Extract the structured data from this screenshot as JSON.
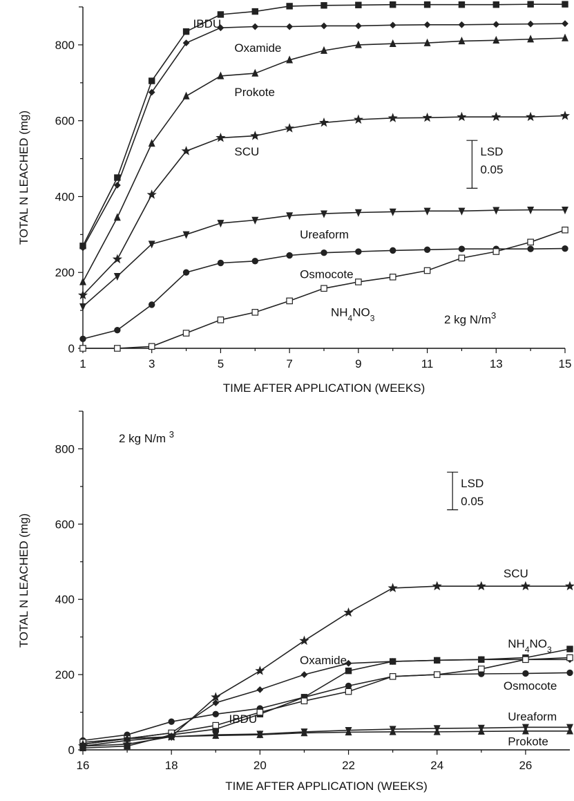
{
  "chart_data": [
    {
      "type": "line",
      "xlabel": "TIME AFTER APPLICATION (WEEKS)",
      "ylabel": "TOTAL N LEACHED (mg)",
      "xlim": [
        1,
        15
      ],
      "ylim": [
        0,
        900
      ],
      "xticks": [
        1,
        3,
        5,
        7,
        9,
        11,
        13,
        15
      ],
      "yticks": [
        0,
        200,
        400,
        600,
        800
      ],
      "annotation": {
        "line1": "2 kg N/m",
        "sup": "3"
      },
      "lsd": {
        "line1": "LSD",
        "line2": "0.05",
        "y_low": 422,
        "y_high": 548,
        "x": 12.3
      },
      "series": [
        {
          "name": "IBDU",
          "marker": "square",
          "label_x": 4.2,
          "label_y": 845,
          "x": [
            1,
            2,
            3,
            4,
            5,
            6,
            7,
            8,
            9,
            10,
            11,
            12,
            13,
            14,
            15
          ],
          "values": [
            270,
            450,
            705,
            835,
            880,
            888,
            902,
            904,
            905,
            906,
            906,
            906,
            906,
            907,
            907
          ]
        },
        {
          "name": "Oxamide",
          "marker": "diamond",
          "label_x": 5.4,
          "label_y": 782,
          "x": [
            1,
            2,
            3,
            4,
            5,
            6,
            7,
            8,
            9,
            10,
            11,
            12,
            13,
            14,
            15
          ],
          "values": [
            265,
            430,
            675,
            805,
            845,
            848,
            848,
            850,
            850,
            852,
            853,
            853,
            854,
            855,
            856
          ]
        },
        {
          "name": "Prokote",
          "marker": "triangle",
          "label_x": 5.4,
          "label_y": 665,
          "x": [
            1,
            2,
            3,
            4,
            5,
            6,
            7,
            8,
            9,
            10,
            11,
            12,
            13,
            14,
            15
          ],
          "values": [
            175,
            345,
            540,
            665,
            718,
            725,
            760,
            785,
            800,
            803,
            805,
            810,
            812,
            815,
            818
          ]
        },
        {
          "name": "SCU",
          "marker": "star",
          "label_x": 5.4,
          "label_y": 508,
          "x": [
            1,
            2,
            3,
            4,
            5,
            6,
            7,
            8,
            9,
            10,
            11,
            12,
            13,
            14,
            15
          ],
          "values": [
            140,
            235,
            405,
            520,
            555,
            560,
            580,
            595,
            603,
            607,
            608,
            610,
            610,
            610,
            613
          ]
        },
        {
          "name": "Ureaform",
          "marker": "tri-down",
          "label_x": 7.3,
          "label_y": 290,
          "x": [
            1,
            2,
            3,
            4,
            5,
            6,
            7,
            8,
            9,
            10,
            11,
            12,
            13,
            14,
            15
          ],
          "values": [
            110,
            190,
            275,
            300,
            330,
            338,
            350,
            355,
            358,
            360,
            362,
            362,
            364,
            365,
            365
          ]
        },
        {
          "name": "Osmocote",
          "marker": "circle",
          "label_x": 7.3,
          "label_y": 185,
          "x": [
            1,
            2,
            3,
            4,
            5,
            6,
            7,
            8,
            9,
            10,
            11,
            12,
            13,
            14,
            15
          ],
          "values": [
            25,
            48,
            115,
            200,
            225,
            230,
            245,
            252,
            255,
            258,
            260,
            262,
            262,
            262,
            263
          ]
        },
        {
          "name": "NH4NO3",
          "marker": "square-open",
          "label_x": 8.2,
          "label_y": 85,
          "x": [
            1,
            2,
            3,
            4,
            5,
            6,
            7,
            8,
            9,
            10,
            11,
            12,
            13,
            14,
            15
          ],
          "values": [
            0,
            0,
            5,
            40,
            75,
            95,
            125,
            158,
            175,
            188,
            205,
            238,
            255,
            280,
            312
          ]
        }
      ]
    },
    {
      "type": "line",
      "xlabel": "TIME AFTER APPLICATION (WEEKS)",
      "ylabel": "TOTAL N LEACHED (mg)",
      "xlim": [
        16,
        27
      ],
      "ylim": [
        0,
        900
      ],
      "xticks": [
        16,
        18,
        20,
        22,
        24,
        26
      ],
      "yticks": [
        0,
        200,
        400,
        600,
        800
      ],
      "annotation": {
        "line1": "2 kg N/m ",
        "sup": "3"
      },
      "lsd": {
        "line1": "LSD",
        "line2": "0.05",
        "y_low": 638,
        "y_high": 738,
        "x": 24.35
      },
      "series": [
        {
          "name": "SCU",
          "marker": "star",
          "label_x": 25.5,
          "label_y": 458,
          "x": [
            16,
            17,
            18,
            19,
            20,
            21,
            22,
            23,
            24,
            25,
            26,
            27
          ],
          "values": [
            10,
            15,
            35,
            140,
            210,
            290,
            365,
            430,
            435,
            435,
            435,
            435
          ]
        },
        {
          "name": "NH4NO3",
          "marker": "square",
          "label_x": 25.6,
          "label_y": 272,
          "x": [
            16,
            17,
            18,
            19,
            20,
            21,
            22,
            23,
            24,
            25,
            26,
            27
          ],
          "values": [
            5,
            10,
            40,
            55,
            95,
            140,
            210,
            235,
            238,
            240,
            245,
            268
          ]
        },
        {
          "name": "Oxamide",
          "marker": "diamond",
          "label_x": 20.9,
          "label_y": 228,
          "x": [
            16,
            17,
            18,
            19,
            20,
            21,
            22,
            23,
            24,
            25,
            26,
            27
          ],
          "values": [
            15,
            30,
            45,
            125,
            160,
            200,
            230,
            235,
            238,
            240,
            240,
            240
          ]
        },
        {
          "name": "Osmocote",
          "marker": "circle",
          "label_x": 25.5,
          "label_y": 160,
          "x": [
            16,
            17,
            18,
            19,
            20,
            21,
            22,
            23,
            24,
            25,
            26,
            27
          ],
          "values": [
            25,
            40,
            75,
            95,
            110,
            140,
            170,
            195,
            200,
            202,
            203,
            205
          ]
        },
        {
          "name": "IBDU",
          "marker": "square-open",
          "label_x": 19.3,
          "label_y": 72,
          "x": [
            16,
            17,
            18,
            19,
            20,
            21,
            22,
            23,
            24,
            25,
            26,
            27
          ],
          "values": [
            20,
            30,
            45,
            65,
            100,
            130,
            155,
            195,
            200,
            215,
            240,
            245
          ]
        },
        {
          "name": "Ureaform",
          "marker": "tri-down",
          "label_x": 25.6,
          "label_y": 78,
          "x": [
            16,
            17,
            18,
            19,
            20,
            21,
            22,
            23,
            24,
            25,
            26,
            27
          ],
          "values": [
            10,
            25,
            35,
            40,
            42,
            48,
            52,
            55,
            57,
            58,
            60,
            60
          ]
        },
        {
          "name": "Prokote",
          "marker": "triangle",
          "label_x": 25.6,
          "label_y": 12,
          "x": [
            16,
            17,
            18,
            19,
            20,
            21,
            22,
            23,
            24,
            25,
            26,
            27
          ],
          "values": [
            15,
            30,
            35,
            38,
            40,
            45,
            47,
            48,
            48,
            49,
            50,
            50
          ]
        }
      ]
    }
  ]
}
